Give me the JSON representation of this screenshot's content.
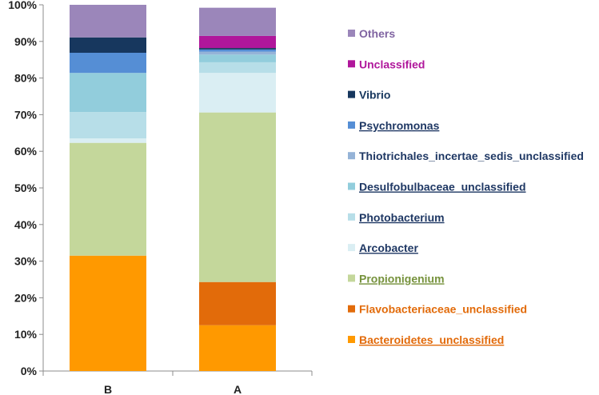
{
  "chart_data": {
    "type": "bar",
    "stacked": true,
    "percent": true,
    "categories": [
      "B",
      "A"
    ],
    "ylim": [
      0,
      100
    ],
    "yticks": [
      "0%",
      "10%",
      "20%",
      "30%",
      "40%",
      "50%",
      "60%",
      "70%",
      "80%",
      "90%",
      "100%"
    ],
    "grid": false,
    "legend_position": "right",
    "series": [
      {
        "name": "Bacteroidetes_unclassified",
        "color": "#FF9900",
        "text_color": "#E26A0A",
        "underline": true,
        "values": [
          31.5,
          12.5
        ]
      },
      {
        "name": "Flavobacteriaceae_unclassified",
        "color": "#E26B0A",
        "text_color": "#E26B0A",
        "underline": false,
        "values": [
          0.0,
          11.8
        ]
      },
      {
        "name": "Propionigenium",
        "color": "#C4D79B",
        "text_color": "#76923C",
        "underline": true,
        "values": [
          30.8,
          46.3
        ]
      },
      {
        "name": "Arcobacter",
        "color": "#DAEEF3",
        "text_color": "#1F3864",
        "underline": true,
        "values": [
          1.2,
          10.8
        ]
      },
      {
        "name": "Photobacterium",
        "color": "#B7DEE8",
        "text_color": "#1F3864",
        "underline": true,
        "values": [
          7.2,
          2.9
        ]
      },
      {
        "name": "Desulfobulbaceae_unclassified",
        "color": "#92CDDC",
        "text_color": "#1F3864",
        "underline": true,
        "values": [
          10.7,
          2.1
        ]
      },
      {
        "name": "Thiotrichales_incertae_sedis_unclassified",
        "color": "#95B3D7",
        "text_color": "#1F3864",
        "underline": false,
        "values": [
          0.0,
          0.8
        ]
      },
      {
        "name": "Psychromonas",
        "color": "#558ED5",
        "text_color": "#1F3864",
        "underline": true,
        "values": [
          5.5,
          0.6
        ]
      },
      {
        "name": "Vibrio",
        "color": "#17375E",
        "text_color": "#17375E",
        "underline": false,
        "values": [
          4.2,
          0.4
        ]
      },
      {
        "name": "Unclassified",
        "color": "#B0179B",
        "text_color": "#B0179B",
        "underline": false,
        "values": [
          0.0,
          3.3
        ]
      },
      {
        "name": "Others",
        "color": "#9B86BA",
        "text_color": "#8064A2",
        "underline": false,
        "values": [
          8.9,
          7.7
        ]
      }
    ]
  }
}
